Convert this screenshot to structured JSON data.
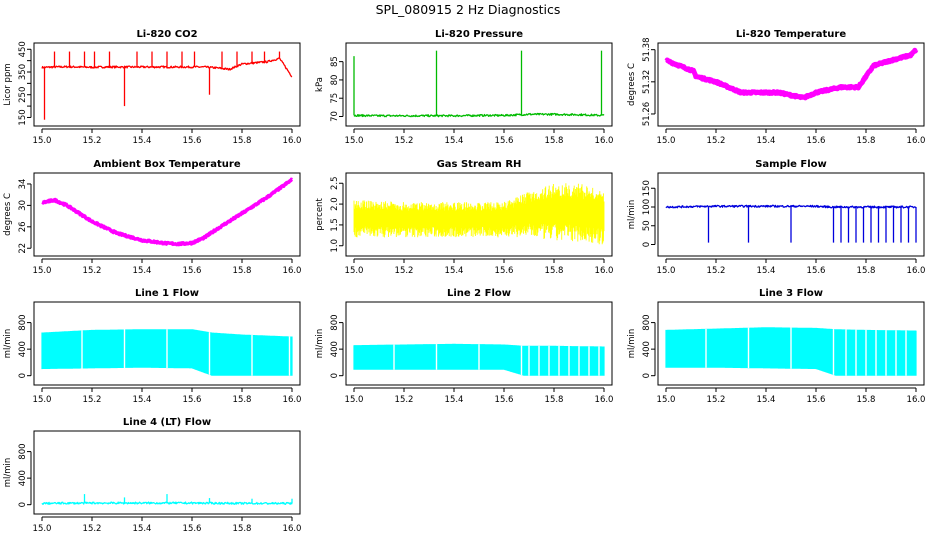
{
  "figure_title": "SPL_080915  2 Hz Diagnostics",
  "chart_data": [
    {
      "type": "line",
      "title": "Li-820 CO2",
      "xlabel": "",
      "ylabel": "Licor ppm",
      "color": "#ff0000",
      "xlim": [
        15.0,
        16.0
      ],
      "ylim": [
        130,
        460
      ],
      "xticks": [
        15.0,
        15.2,
        15.4,
        15.6,
        15.8,
        16.0
      ],
      "yticks": [
        150,
        200,
        250,
        300,
        350,
        400,
        450
      ],
      "ytick_labels": [
        "150",
        "",
        "250",
        "",
        "350",
        "",
        "450"
      ],
      "x": [
        15.0,
        15.05,
        15.1,
        15.15,
        15.2,
        15.25,
        15.3,
        15.35,
        15.4,
        15.45,
        15.5,
        15.55,
        15.6,
        15.65,
        15.7,
        15.75,
        15.8,
        15.85,
        15.9,
        15.95,
        16.0
      ],
      "y": [
        370,
        372,
        373,
        372,
        371,
        372,
        372,
        372,
        372,
        372,
        372,
        372,
        372,
        372,
        368,
        362,
        385,
        390,
        395,
        410,
        330
      ],
      "spikes_x": [
        15.01,
        15.05,
        15.11,
        15.17,
        15.21,
        15.27,
        15.33,
        15.38,
        15.44,
        15.5,
        15.56,
        15.61,
        15.67,
        15.72,
        15.78,
        15.84,
        15.89,
        15.95
      ],
      "spikes_y": [
        140,
        440,
        440,
        440,
        440,
        440,
        200,
        440,
        440,
        440,
        440,
        440,
        250,
        440,
        440,
        440,
        440,
        440
      ]
    },
    {
      "type": "line",
      "title": "Li-820 Pressure",
      "xlabel": "",
      "ylabel": "kPa",
      "color": "#00bb00",
      "xlim": [
        15.0,
        16.0
      ],
      "ylim": [
        68.5,
        89
      ],
      "xticks": [
        15.0,
        15.2,
        15.4,
        15.6,
        15.8,
        16.0
      ],
      "yticks": [
        70,
        75,
        80,
        85
      ],
      "ytick_labels": [
        "70",
        "75",
        "80",
        "85"
      ],
      "x": [
        15.0,
        15.1,
        15.2,
        15.3,
        15.4,
        15.5,
        15.6,
        15.7,
        15.8,
        15.9,
        16.0
      ],
      "y": [
        70.3,
        70.2,
        70.2,
        70.2,
        70.2,
        70.3,
        70.3,
        70.6,
        70.6,
        70.5,
        70.3
      ],
      "spikes_x": [
        15.0,
        15.33,
        15.67,
        15.99
      ],
      "spikes_y": [
        86.5,
        88,
        88,
        88
      ]
    },
    {
      "type": "line",
      "title": "Li-820 Temperature",
      "xlabel": "",
      "ylabel": "degrees C",
      "color": "#ff00ff",
      "xlim": [
        15.0,
        16.0
      ],
      "ylim": [
        51.245,
        51.385
      ],
      "xticks": [
        15.0,
        15.2,
        15.4,
        15.6,
        15.8,
        16.0
      ],
      "yticks": [
        51.26,
        51.32,
        51.38
      ],
      "ytick_labels": [
        "51.26",
        "51.32",
        "51.38"
      ],
      "x": [
        15.0,
        15.11,
        15.12,
        15.2,
        15.25,
        15.3,
        15.45,
        15.55,
        15.6,
        15.7,
        15.77,
        15.8,
        15.83,
        15.9,
        15.98,
        16.0
      ],
      "y": [
        51.36,
        51.34,
        51.33,
        51.32,
        51.31,
        51.3,
        51.3,
        51.29,
        51.3,
        51.31,
        51.31,
        51.33,
        51.35,
        51.36,
        51.37,
        51.38
      ]
    },
    {
      "type": "line",
      "title": "Ambient Box Temperature",
      "xlabel": "",
      "ylabel": "degrees C",
      "color": "#ff00ff",
      "xlim": [
        15.0,
        16.0
      ],
      "ylim": [
        21.3,
        35.3
      ],
      "xticks": [
        15.0,
        15.2,
        15.4,
        15.6,
        15.8,
        16.0
      ],
      "yticks": [
        22,
        26,
        30,
        34
      ],
      "ytick_labels": [
        "22",
        "26",
        "30",
        "34"
      ],
      "x": [
        15.0,
        15.05,
        15.1,
        15.2,
        15.3,
        15.4,
        15.5,
        15.55,
        15.6,
        15.65,
        15.7,
        15.8,
        15.85,
        15.9,
        16.0
      ],
      "y": [
        30.5,
        31.0,
        30.0,
        27.0,
        24.8,
        23.5,
        22.9,
        22.8,
        23.0,
        24.0,
        25.6,
        28.5,
        30.0,
        31.5,
        34.8
      ]
    },
    {
      "type": "line",
      "title": "Gas Stream RH",
      "xlabel": "",
      "ylabel": "percent",
      "color": "#ffff00",
      "xlim": [
        15.0,
        16.0
      ],
      "ylim": [
        0.85,
        2.65
      ],
      "xticks": [
        15.0,
        15.2,
        15.4,
        15.6,
        15.8,
        16.0
      ],
      "yticks": [
        1.0,
        1.5,
        2.0,
        2.5
      ],
      "ytick_labels": [
        "1.0",
        "1.5",
        "2.0",
        "2.5"
      ],
      "x": [
        15.0,
        15.2,
        15.4,
        15.6,
        15.7,
        15.8,
        15.9,
        16.0
      ],
      "y_low": [
        1.2,
        1.2,
        1.2,
        1.2,
        1.2,
        1.1,
        1.1,
        1.0
      ],
      "y_high": [
        2.1,
        2.05,
        2.05,
        2.05,
        2.3,
        2.5,
        2.5,
        2.3
      ]
    },
    {
      "type": "line",
      "title": "Sample Flow",
      "xlabel": "",
      "ylabel": "ml/min",
      "color": "#0000dd",
      "xlim": [
        15.0,
        16.0
      ],
      "ylim": [
        -20,
        180
      ],
      "xticks": [
        15.0,
        15.2,
        15.4,
        15.6,
        15.8,
        16.0
      ],
      "yticks": [
        0,
        50,
        100,
        150
      ],
      "ytick_labels": [
        "0",
        "50",
        "100",
        "150"
      ],
      "x": [
        15.0,
        15.2,
        15.4,
        15.6,
        15.66,
        15.7,
        15.8,
        15.9,
        16.0
      ],
      "y": [
        100,
        102,
        102,
        102,
        100,
        100,
        100,
        100,
        100
      ],
      "dips_x": [
        15.17,
        15.33,
        15.5,
        15.67,
        15.7,
        15.73,
        15.76,
        15.79,
        15.82,
        15.85,
        15.88,
        15.91,
        15.94,
        15.97,
        16.0
      ],
      "dips_y": [
        5,
        5,
        5,
        5,
        5,
        5,
        5,
        5,
        5,
        5,
        5,
        5,
        5,
        5,
        5
      ]
    },
    {
      "type": "area",
      "title": "Line 1 Flow",
      "xlabel": "",
      "ylabel": "ml/min",
      "color": "#00ffff",
      "xlim": [
        15.0,
        16.0
      ],
      "ylim": [
        -80,
        1050
      ],
      "xticks": [
        15.0,
        15.2,
        15.4,
        15.6,
        15.8,
        16.0
      ],
      "yticks": [
        0,
        400,
        800
      ],
      "ytick_labels": [
        "0",
        "400",
        "800"
      ],
      "x": [
        15.0,
        15.2,
        15.4,
        15.6,
        15.68,
        15.8,
        16.0
      ],
      "y_high": [
        650,
        690,
        700,
        700,
        650,
        620,
        590
      ],
      "y_low": [
        100,
        110,
        120,
        110,
        0,
        0,
        0
      ],
      "gaps_x": [
        15.16,
        15.33,
        15.5,
        15.67,
        15.84,
        15.99
      ]
    },
    {
      "type": "area",
      "title": "Line 2 Flow",
      "xlabel": "",
      "ylabel": "ml/min",
      "color": "#00ffff",
      "xlim": [
        15.0,
        16.0
      ],
      "ylim": [
        -80,
        1050
      ],
      "xticks": [
        15.0,
        15.2,
        15.4,
        15.6,
        15.8,
        16.0
      ],
      "yticks": [
        0,
        400,
        800
      ],
      "ytick_labels": [
        "0",
        "400",
        "800"
      ],
      "x": [
        15.0,
        15.2,
        15.4,
        15.6,
        15.68,
        15.8,
        16.0
      ],
      "y_high": [
        460,
        470,
        480,
        470,
        450,
        450,
        440
      ],
      "y_low": [
        90,
        90,
        90,
        90,
        0,
        0,
        0
      ],
      "gaps_x": [
        15.16,
        15.33,
        15.5,
        15.67,
        15.7,
        15.74,
        15.78,
        15.82,
        15.86,
        15.9,
        15.94,
        15.98
      ]
    },
    {
      "type": "area",
      "title": "Line 3 Flow",
      "xlabel": "",
      "ylabel": "ml/min",
      "color": "#00ffff",
      "xlim": [
        15.0,
        16.0
      ],
      "ylim": [
        -80,
        1050
      ],
      "xticks": [
        15.0,
        15.2,
        15.4,
        15.6,
        15.8,
        16.0
      ],
      "yticks": [
        0,
        400,
        800
      ],
      "ytick_labels": [
        "0",
        "400",
        "800"
      ],
      "x": [
        15.0,
        15.2,
        15.4,
        15.6,
        15.68,
        15.8,
        16.0
      ],
      "y_high": [
        690,
        710,
        730,
        720,
        700,
        690,
        680
      ],
      "y_low": [
        120,
        120,
        110,
        100,
        0,
        0,
        0
      ],
      "gaps_x": [
        15.16,
        15.33,
        15.5,
        15.67,
        15.72,
        15.76,
        15.8,
        15.84,
        15.88,
        15.92,
        15.96
      ]
    },
    {
      "type": "line",
      "title": "Line 4 (LT) Flow",
      "xlabel": "",
      "ylabel": "ml/min",
      "color": "#00ffff",
      "xlim": [
        15.0,
        16.0
      ],
      "ylim": [
        -80,
        1050
      ],
      "xticks": [
        15.0,
        15.2,
        15.4,
        15.6,
        15.8,
        16.0
      ],
      "yticks": [
        0,
        400,
        800
      ],
      "ytick_labels": [
        "0",
        "400",
        "800"
      ],
      "x": [
        15.0,
        15.2,
        15.4,
        15.6,
        15.8,
        16.0
      ],
      "y": [
        20,
        25,
        25,
        25,
        20,
        20
      ],
      "spikes_x": [
        15.17,
        15.33,
        15.5,
        15.67,
        15.84,
        16.0
      ],
      "spikes_y": [
        160,
        110,
        160,
        100,
        90,
        90
      ]
    }
  ]
}
